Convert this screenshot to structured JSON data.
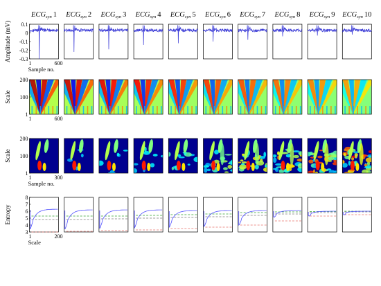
{
  "chart_data": {
    "type": "multi-panel",
    "columns": [
      "ECG",
      "ECG",
      "ECG",
      "ECG",
      "ECG",
      "ECG",
      "ECG",
      "ECG",
      "ECG",
      "ECG"
    ],
    "column_subscripts": [
      "syn",
      "syn",
      "syn",
      "syn",
      "syn",
      "syn",
      "syn",
      "syn",
      "syn",
      "syn"
    ],
    "column_numbers": [
      "1",
      "2",
      "3",
      "4",
      "5",
      "6",
      "7",
      "8",
      "9",
      "10"
    ],
    "rows": [
      {
        "type": "line",
        "ylabel": "Amplitude (mV)",
        "xlabel": "Sample no.",
        "xlim": [
          1,
          600
        ],
        "ylim": [
          -0.3,
          0.1
        ],
        "yticks": [
          "0.1",
          "0",
          "-0.1",
          "-0.2",
          "-0.3"
        ],
        "xticks": [
          "1",
          "600"
        ],
        "series": [
          {
            "spike_depth": -0.3
          },
          {
            "spike_depth": -0.22
          },
          {
            "spike_depth": -0.19
          },
          {
            "spike_depth": -0.14
          },
          {
            "spike_depth": -0.12
          },
          {
            "spike_depth": -0.1
          },
          {
            "spike_depth": -0.08
          },
          {
            "spike_depth": -0.04
          },
          {
            "spike_depth": -0.03
          },
          {
            "spike_depth": -0.02
          }
        ]
      },
      {
        "type": "heatmap",
        "ylabel": "Scale",
        "xlabel": "",
        "xlim": [
          1,
          600
        ],
        "ylim": [
          1,
          200
        ],
        "yticks": [
          "200",
          "100",
          "1"
        ],
        "xticks": [
          "1",
          "600"
        ],
        "colormap": "jet",
        "description_level": [
          1.0,
          0.9,
          0.8,
          0.7,
          0.6,
          0.5,
          0.4,
          0.3,
          0.2,
          0.1
        ]
      },
      {
        "type": "heatmap",
        "ylabel": "Scale",
        "xlabel": "Sample no.",
        "xlim": [
          1,
          300
        ],
        "ylim": [
          1,
          200
        ],
        "yticks": [
          "200",
          "100",
          "1"
        ],
        "xticks": [
          "1",
          "300"
        ],
        "colormap": "jet",
        "noise_level": [
          0.0,
          0.1,
          0.15,
          0.2,
          0.3,
          0.45,
          0.6,
          0.75,
          0.9,
          1.0
        ]
      },
      {
        "type": "line",
        "ylabel": "Entropy",
        "xlabel": "Scale",
        "xlim": [
          1,
          200
        ],
        "ylim": [
          3,
          8
        ],
        "yticks": [
          "8",
          "7",
          "6",
          "5",
          "4",
          "3"
        ],
        "xticks": [
          "1",
          "200"
        ],
        "series_styles": [
          {
            "color": "#4d4dff",
            "dash": "solid"
          },
          {
            "color": "#2ca02c",
            "dash": "dashed"
          },
          {
            "color": "#777777",
            "dash": "dashed"
          },
          {
            "color": "#e8706a",
            "dash": "dashed"
          }
        ],
        "panels": [
          {
            "blue_start": 3.4,
            "blue_end": 6.3,
            "green": 5.3,
            "gray": 4.8,
            "red": 3.0
          },
          {
            "blue_start": 3.4,
            "blue_end": 6.2,
            "green": 5.3,
            "gray": 4.8,
            "red": 3.1
          },
          {
            "blue_start": 3.5,
            "blue_end": 6.2,
            "green": 5.3,
            "gray": 4.9,
            "red": 3.2
          },
          {
            "blue_start": 3.6,
            "blue_end": 6.2,
            "green": 5.4,
            "gray": 5.0,
            "red": 3.3
          },
          {
            "blue_start": 3.7,
            "blue_end": 6.1,
            "green": 5.5,
            "gray": 5.1,
            "red": 3.5
          },
          {
            "blue_start": 3.8,
            "blue_end": 6.1,
            "green": 5.6,
            "gray": 5.2,
            "red": 3.7
          },
          {
            "blue_start": 4.0,
            "blue_end": 6.1,
            "green": 5.8,
            "gray": 5.4,
            "red": 4.0
          },
          {
            "blue_start": 5.2,
            "blue_end": 6.1,
            "green": 5.9,
            "gray": 5.6,
            "red": 4.6
          },
          {
            "blue_start": 5.4,
            "blue_end": 6.0,
            "green": 5.95,
            "gray": 5.8,
            "red": 5.3
          },
          {
            "blue_start": 5.6,
            "blue_end": 6.0,
            "green": 6.0,
            "gray": 5.9,
            "red": 5.5
          }
        ]
      }
    ]
  }
}
